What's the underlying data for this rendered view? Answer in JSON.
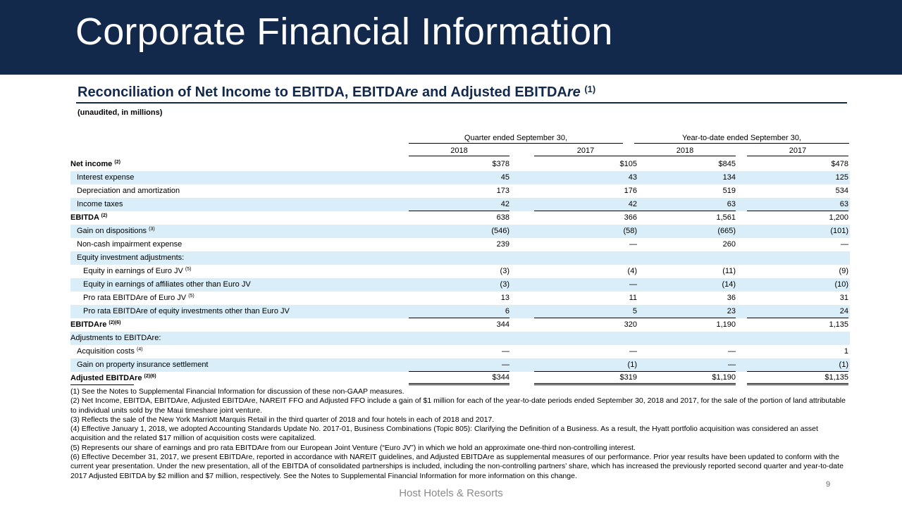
{
  "header": {
    "title": "Corporate Financial Information"
  },
  "subtitle": {
    "main": "Reconciliation of Net Income to EBITDA, EBITDA",
    "re1": "re",
    "mid": " and Adjusted EBITDA",
    "re2": "re",
    "note": "(1)"
  },
  "unaudited": "(unaudited, in millions)",
  "columns": {
    "group1": "Quarter ended September 30,",
    "group2": "Year-to-date ended September 30,",
    "years": [
      "2018",
      "2017",
      "2018",
      "2017"
    ]
  },
  "rows": [
    {
      "label": "Net income",
      "sup": "(2)",
      "values": [
        "$378",
        "$105",
        "$845",
        "$478"
      ]
    },
    {
      "label": "Interest expense",
      "sup": "",
      "values": [
        "45",
        "43",
        "134",
        "125"
      ]
    },
    {
      "label": "Depreciation and amortization",
      "sup": "",
      "values": [
        "173",
        "176",
        "519",
        "534"
      ]
    },
    {
      "label": "Income taxes",
      "sup": "",
      "values": [
        "42",
        "42",
        "63",
        "63"
      ]
    },
    {
      "label": "EBITDA",
      "sup": "(2)",
      "values": [
        "638",
        "366",
        "1,561",
        "1,200"
      ]
    },
    {
      "label": "Gain on dispositions",
      "sup": "(3)",
      "values": [
        "(546)",
        "(58)",
        "(665)",
        "(101)"
      ]
    },
    {
      "label": "Non-cash impairment expense",
      "sup": "",
      "values": [
        "239",
        "—",
        "260",
        "—"
      ]
    },
    {
      "label": "Equity investment adjustments:",
      "sup": "",
      "values": [
        "",
        "",
        "",
        ""
      ]
    },
    {
      "label": "Equity in earnings of Euro JV",
      "sup": "(5)",
      "values": [
        "(3)",
        "(4)",
        "(11)",
        "(9)"
      ]
    },
    {
      "label": "Equity in earnings of affiliates other than Euro JV",
      "sup": "",
      "values": [
        "(3)",
        "—",
        "(14)",
        "(10)"
      ]
    },
    {
      "label": "Pro rata EBITDAre of Euro JV",
      "sup": "(5)",
      "values": [
        "13",
        "11",
        "36",
        "31"
      ]
    },
    {
      "label": "Pro rata EBITDAre of equity investments other than Euro JV",
      "sup": "",
      "values": [
        "6",
        "5",
        "23",
        "24"
      ]
    },
    {
      "label": "EBITDAre",
      "sup": "(2)(6)",
      "values": [
        "344",
        "320",
        "1,190",
        "1,135"
      ]
    },
    {
      "label": "Adjustments to EBITDAre:",
      "sup": "",
      "values": [
        "",
        "",
        "",
        ""
      ]
    },
    {
      "label": "Acquisition costs",
      "sup": "(4)",
      "values": [
        "—",
        "—",
        "—",
        "1"
      ]
    },
    {
      "label": "Gain on property insurance settlement",
      "sup": "",
      "values": [
        "—",
        "(1)",
        "—",
        "(1)"
      ]
    },
    {
      "label": "Adjusted EBITDAre",
      "sup": "(2)(6)",
      "values": [
        "$344",
        "$319",
        "$1,190",
        "$1,135"
      ]
    }
  ],
  "notes": [
    "(1) See the Notes to Supplemental Financial Information for discussion of these non-GAAP measures.",
    "(2) Net Income, EBITDA, EBITDAre, Adjusted EBITDAre, NAREIT FFO and Adjusted FFO include a gain of $1 million for each of the year-to-date periods ended September 30, 2018 and 2017, for the sale of the portion of land attributable to individual units sold by the Maui timeshare joint venture.",
    "(3) Reflects the sale of the New York Marriott Marquis Retail in the third quarter of 2018 and four hotels in each of 2018 and 2017.",
    "(4) Effective January 1, 2018, we adopted Accounting Standards Update No. 2017-01, Business Combinations (Topic 805): Clarifying the Definition of a Business. As a result, the Hyatt portfolio acquisition was considered an asset acquisition and the related $17 million of acquisition costs were capitalized.",
    "(5) Represents our share of earnings and pro rata EBITDAre from our European Joint Venture (“Euro JV”) in which we hold an approximate one-third non-controlling interest.",
    "(6) Effective December 31, 2017, we present EBITDAre, reported in accordance with NAREIT guidelines, and Adjusted EBITDAre as supplemental measures of our performance. Prior year results have been updated to conform with the current year presentation. Under the new presentation, all of the EBITDA of consolidated partnerships is included, including the non-controlling partners’ share, which has increased the previously reported second quarter and year-to-date 2017 Adjusted EBITDA by $2 million and $7 million, respectively. See the Notes to Supplemental Financial Information for more information on this change."
  ],
  "footer": "Host Hotels & Resorts",
  "page_number": "9"
}
